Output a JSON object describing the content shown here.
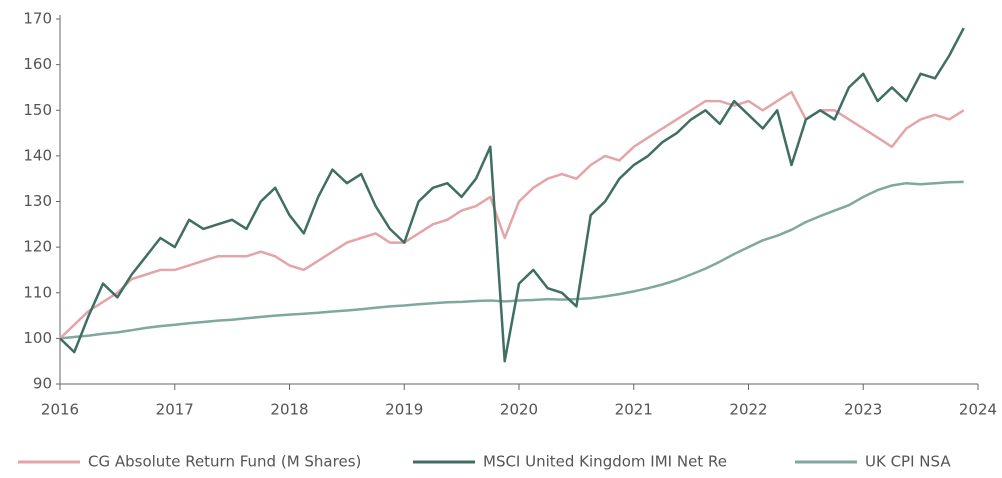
{
  "chart_data": {
    "type": "line",
    "x": [
      2016,
      2016.125,
      2016.25,
      2016.375,
      2016.5,
      2016.625,
      2016.75,
      2016.875,
      2017,
      2017.125,
      2017.25,
      2017.375,
      2017.5,
      2017.625,
      2017.75,
      2017.875,
      2018,
      2018.125,
      2018.25,
      2018.375,
      2018.5,
      2018.625,
      2018.75,
      2018.875,
      2019,
      2019.125,
      2019.25,
      2019.375,
      2019.5,
      2019.625,
      2019.75,
      2019.875,
      2020,
      2020.125,
      2020.25,
      2020.375,
      2020.5,
      2020.625,
      2020.75,
      2020.875,
      2021,
      2021.125,
      2021.25,
      2021.375,
      2021.5,
      2021.625,
      2021.75,
      2021.875,
      2022,
      2022.125,
      2022.25,
      2022.375,
      2022.5,
      2022.625,
      2022.75,
      2022.875,
      2023,
      2023.125,
      2023.25,
      2023.375,
      2023.5,
      2023.625,
      2023.75,
      2023.875
    ],
    "series": [
      {
        "name": "CG Absolute Return Fund (M Shares)",
        "color": "#e3a5a8",
        "values": [
          100,
          103,
          106,
          108,
          110,
          113,
          114,
          115,
          115,
          116,
          117,
          118,
          118,
          118,
          119,
          118,
          116,
          115,
          117,
          119,
          121,
          122,
          123,
          121,
          121,
          123,
          125,
          126,
          128,
          129,
          131,
          122,
          130,
          133,
          135,
          136,
          135,
          138,
          140,
          139,
          142,
          144,
          146,
          148,
          150,
          152,
          152,
          151,
          152,
          150,
          152,
          154,
          148,
          150,
          150,
          148,
          146,
          144,
          142,
          146,
          148,
          149,
          148,
          150
        ]
      },
      {
        "name": "MSCI United Kingdom IMI Net Re",
        "color": "#3f6e63",
        "values": [
          100,
          97,
          105,
          112,
          109,
          114,
          118,
          122,
          120,
          126,
          124,
          125,
          126,
          124,
          130,
          133,
          127,
          123,
          131,
          137,
          134,
          136,
          129,
          124,
          121,
          130,
          133,
          134,
          131,
          135,
          142,
          95,
          112,
          115,
          111,
          110,
          107,
          127,
          130,
          135,
          138,
          140,
          143,
          145,
          148,
          150,
          147,
          152,
          149,
          146,
          150,
          138,
          148,
          150,
          148,
          155,
          158,
          152,
          155,
          152,
          158,
          157,
          162,
          168
        ]
      },
      {
        "name": "UK CPI NSA",
        "color": "#7fa89e",
        "values": [
          100,
          100.3,
          100.6,
          101,
          101.3,
          101.8,
          102.3,
          102.7,
          103,
          103.3,
          103.6,
          103.9,
          104.1,
          104.4,
          104.7,
          105,
          105.2,
          105.4,
          105.6,
          105.9,
          106.1,
          106.4,
          106.7,
          107,
          107.2,
          107.5,
          107.7,
          107.9,
          108,
          108.2,
          108.3,
          108.1,
          108.3,
          108.4,
          108.6,
          108.5,
          108.6,
          108.8,
          109.2,
          109.7,
          110.3,
          111,
          111.8,
          112.8,
          114,
          115.3,
          116.8,
          118.5,
          120,
          121.5,
          122.5,
          123.8,
          125.5,
          126.8,
          128,
          129.2,
          131,
          132.5,
          133.5,
          134,
          133.8,
          134,
          134.2,
          134.3
        ]
      }
    ],
    "xlim": [
      2016,
      2024
    ],
    "xticks": [
      2016,
      2017,
      2018,
      2019,
      2020,
      2021,
      2022,
      2023,
      2024
    ],
    "ylim": [
      90,
      170
    ],
    "yticks": [
      90,
      100,
      110,
      120,
      130,
      140,
      150,
      160,
      170
    ],
    "grid": false,
    "legend": "bottom"
  }
}
